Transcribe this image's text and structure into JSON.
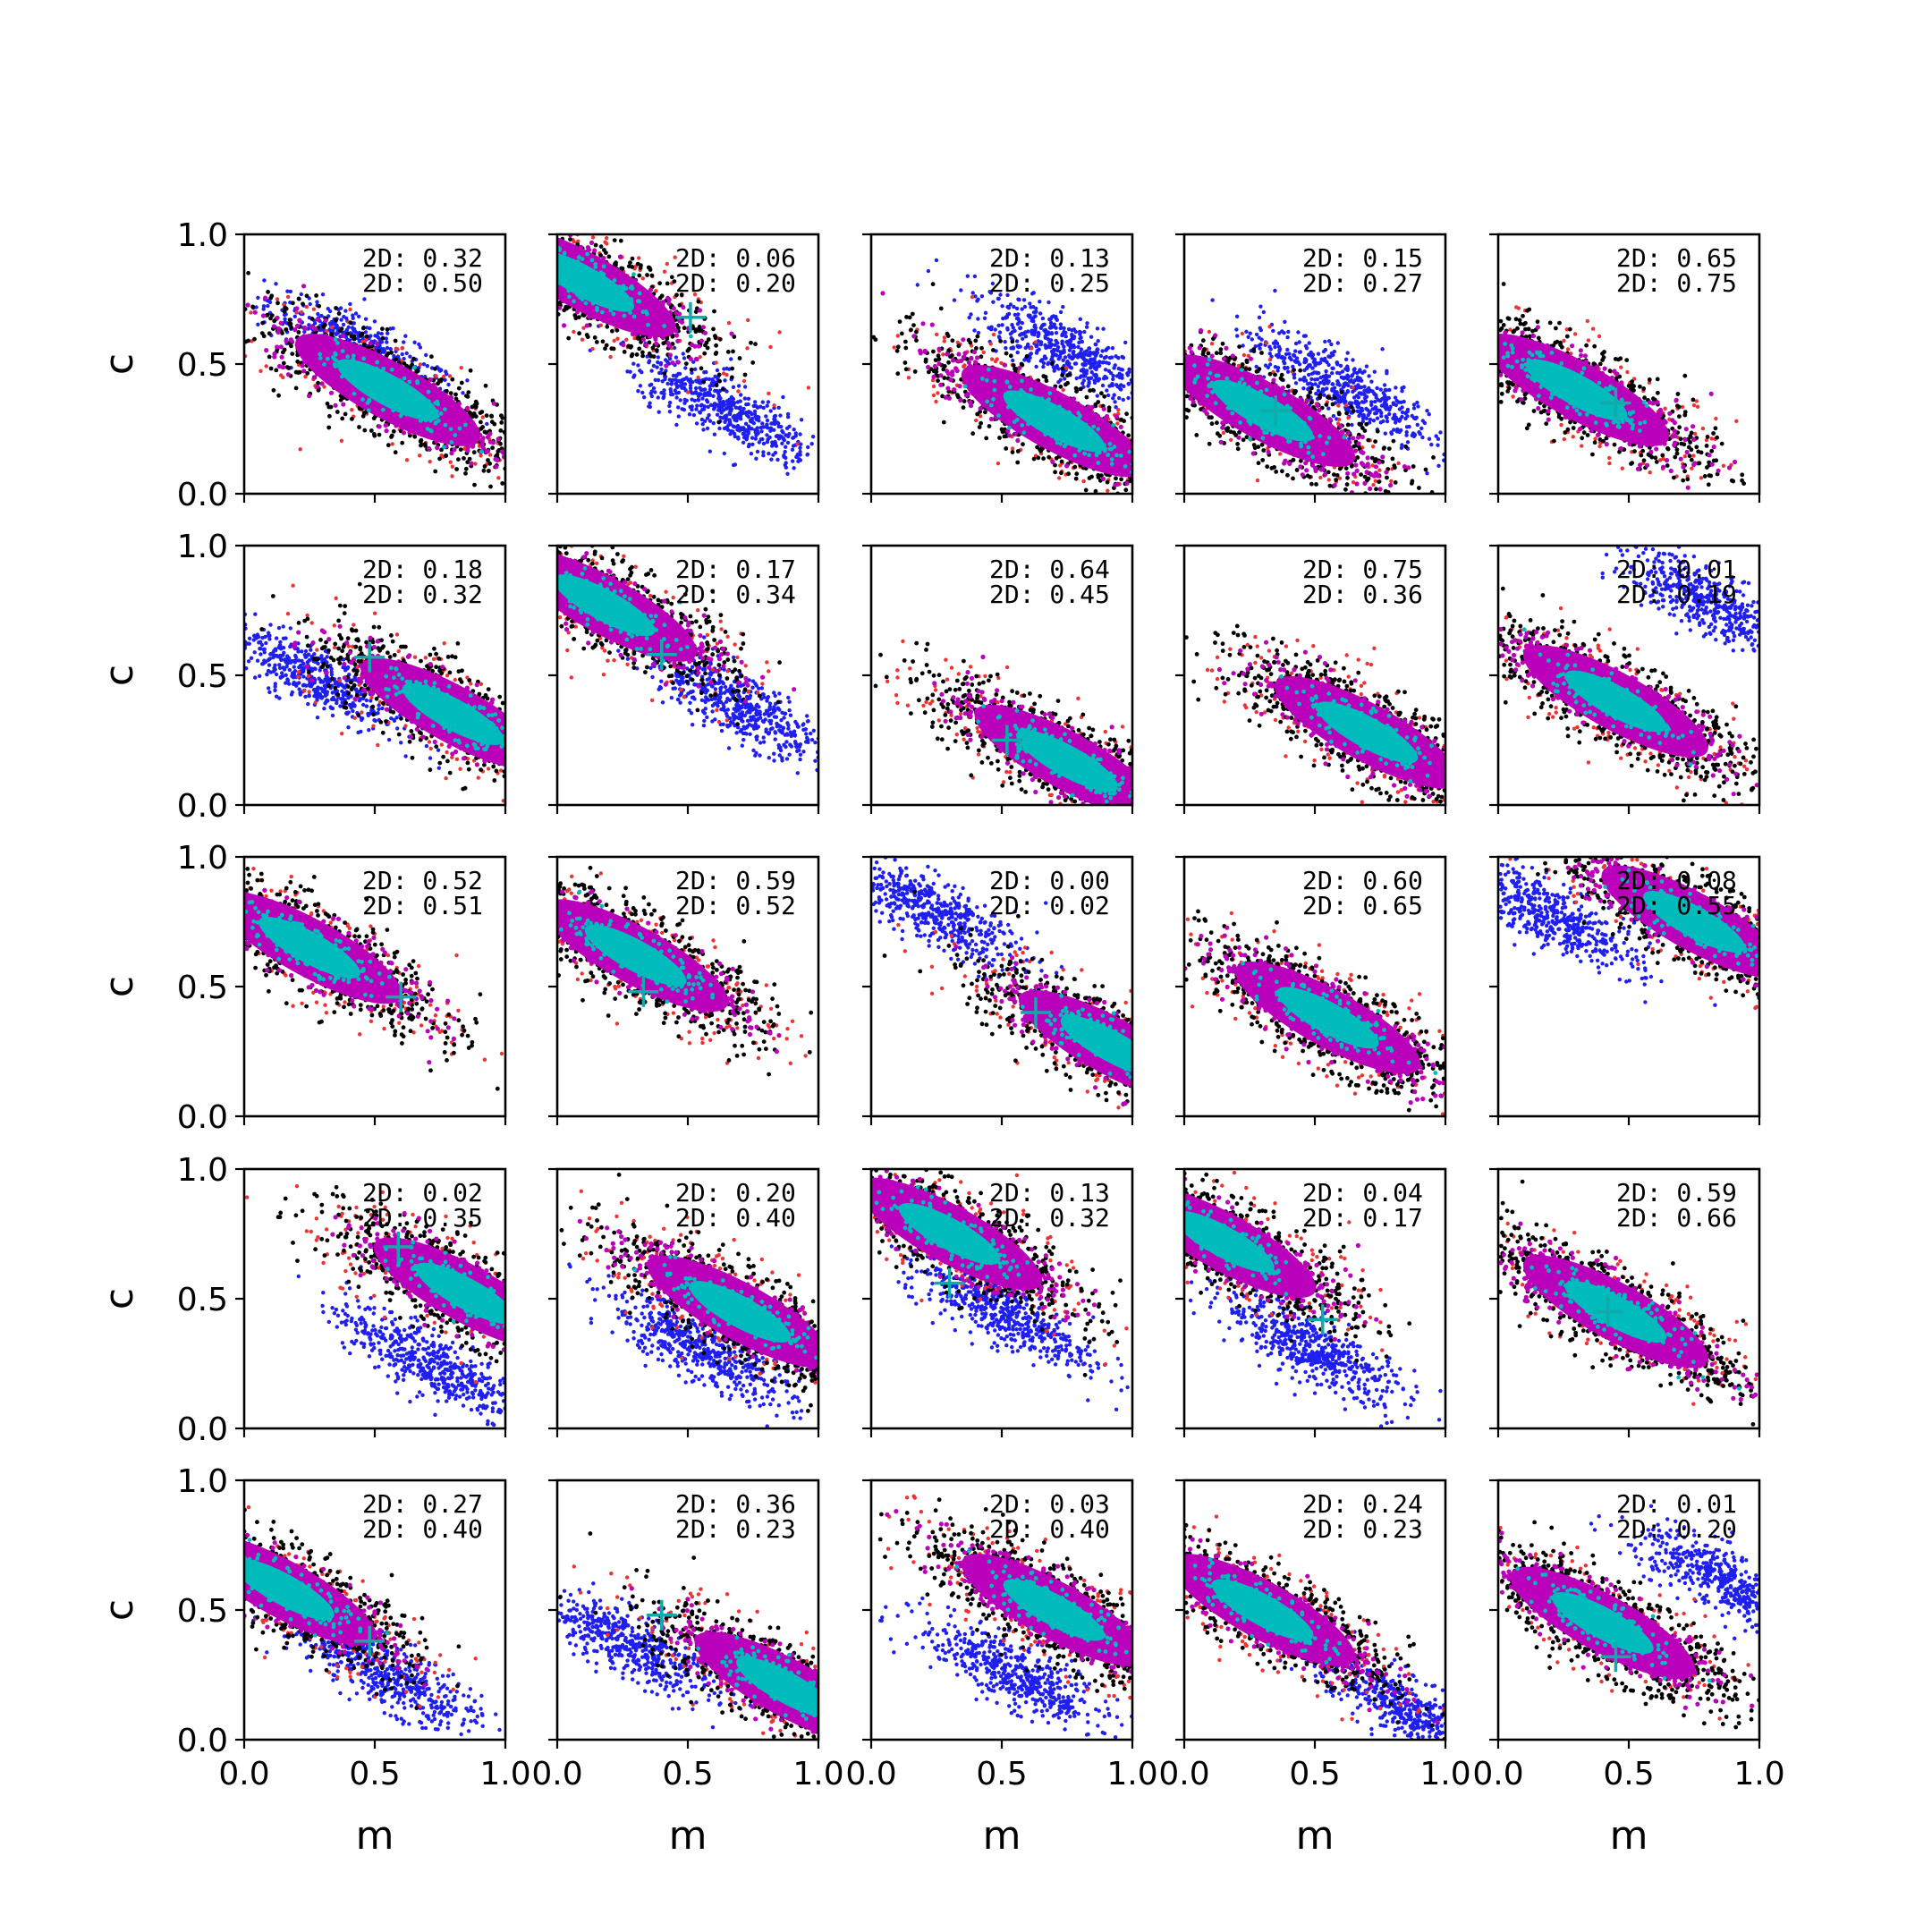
{
  "figure": {
    "type": "scatter",
    "rows": 5,
    "cols": 5,
    "xlim": [
      0,
      1
    ],
    "ylim": [
      0,
      1
    ],
    "xlabel": "m",
    "ylabel": "c",
    "xticks": [
      "0.0",
      "0.5",
      "1.0"
    ],
    "yticks": [
      "0.0",
      "0.5",
      "1.0"
    ],
    "colors": {
      "blue": "#1f1ff0",
      "red": "#ee3333",
      "black": "#000000",
      "magenta": "#bb00bb",
      "cyan": "#00bbbb"
    }
  },
  "chart_data": [
    {
      "type": "scatter",
      "annotations": [
        "2D: 0.32",
        "2D: 0.50"
      ],
      "main_center": [
        0.55,
        0.4
      ],
      "blue_center": [
        0.45,
        0.55
      ],
      "cross": null
    },
    {
      "type": "scatter",
      "annotations": [
        "2D: 0.06",
        "2D: 0.20"
      ],
      "main_center": [
        0.1,
        0.82
      ],
      "blue_center": [
        0.65,
        0.32
      ],
      "cross": [
        0.51,
        0.68
      ]
    },
    {
      "type": "scatter",
      "annotations": [
        "2D: 0.13",
        "2D: 0.25"
      ],
      "main_center": [
        0.7,
        0.28
      ],
      "blue_center": [
        0.75,
        0.55
      ],
      "cross": null
    },
    {
      "type": "scatter",
      "annotations": [
        "2D: 0.15",
        "2D: 0.27"
      ],
      "main_center": [
        0.3,
        0.32
      ],
      "blue_center": [
        0.6,
        0.42
      ],
      "cross": [
        0.35,
        0.32
      ]
    },
    {
      "type": "scatter",
      "annotations": [
        "2D: 0.65",
        "2D: 0.75"
      ],
      "main_center": [
        0.3,
        0.4
      ],
      "blue_center": null,
      "cross": [
        0.45,
        0.35
      ]
    },
    {
      "type": "scatter",
      "annotations": [
        "2D: 0.18",
        "2D: 0.32"
      ],
      "main_center": [
        0.8,
        0.35
      ],
      "blue_center": [
        0.25,
        0.5
      ],
      "cross": [
        0.48,
        0.57
      ]
    },
    {
      "type": "scatter",
      "annotations": [
        "2D: 0.17",
        "2D: 0.34"
      ],
      "main_center": [
        0.18,
        0.77
      ],
      "blue_center": [
        0.7,
        0.38
      ],
      "cross": [
        0.4,
        0.58
      ]
    },
    {
      "type": "scatter",
      "annotations": [
        "2D: 0.64",
        "2D: 0.45"
      ],
      "main_center": [
        0.75,
        0.17
      ],
      "blue_center": null,
      "cross": [
        0.52,
        0.25
      ]
    },
    {
      "type": "scatter",
      "annotations": [
        "2D: 0.75",
        "2D: 0.36"
      ],
      "main_center": [
        0.7,
        0.28
      ],
      "blue_center": null,
      "cross": null
    },
    {
      "type": "scatter",
      "annotations": [
        "2D: 0.01",
        "2D: 0.19"
      ],
      "main_center": [
        0.45,
        0.4
      ],
      "blue_center": [
        0.82,
        0.77
      ],
      "cross": null
    },
    {
      "type": "scatter",
      "annotations": [
        "2D: 0.52",
        "2D: 0.51"
      ],
      "main_center": [
        0.25,
        0.65
      ],
      "blue_center": null,
      "cross": [
        0.6,
        0.46
      ]
    },
    {
      "type": "scatter",
      "annotations": [
        "2D: 0.59",
        "2D: 0.52"
      ],
      "main_center": [
        0.3,
        0.62
      ],
      "blue_center": null,
      "cross": [
        0.33,
        0.48
      ]
    },
    {
      "type": "scatter",
      "annotations": [
        "2D: 0.00",
        "2D: 0.02"
      ],
      "main_center": [
        0.92,
        0.27
      ],
      "blue_center": [
        0.22,
        0.8
      ],
      "cross": [
        0.63,
        0.4
      ]
    },
    {
      "type": "scatter",
      "annotations": [
        "2D: 0.60",
        "2D: 0.65"
      ],
      "main_center": [
        0.55,
        0.38
      ],
      "blue_center": null,
      "cross": null
    },
    {
      "type": "scatter",
      "annotations": [
        "2D: 0.08",
        "2D: 0.55"
      ],
      "main_center": [
        0.75,
        0.75
      ],
      "blue_center": [
        0.2,
        0.77
      ],
      "cross": null
    },
    {
      "type": "scatter",
      "annotations": [
        "2D: 0.02",
        "2D: 0.35"
      ],
      "main_center": [
        0.85,
        0.52
      ],
      "blue_center": [
        0.7,
        0.26
      ],
      "cross": [
        0.59,
        0.7
      ]
    },
    {
      "type": "scatter",
      "annotations": [
        "2D: 0.20",
        "2D: 0.40"
      ],
      "main_center": [
        0.7,
        0.45
      ],
      "blue_center": [
        0.55,
        0.3
      ],
      "cross": null
    },
    {
      "type": "scatter",
      "annotations": [
        "2D: 0.13",
        "2D: 0.32"
      ],
      "main_center": [
        0.3,
        0.75
      ],
      "blue_center": [
        0.5,
        0.45
      ],
      "cross": [
        0.3,
        0.56
      ]
    },
    {
      "type": "scatter",
      "annotations": [
        "2D: 0.04",
        "2D: 0.17"
      ],
      "main_center": [
        0.15,
        0.72
      ],
      "blue_center": [
        0.5,
        0.3
      ],
      "cross": [
        0.53,
        0.42
      ]
    },
    {
      "type": "scatter",
      "annotations": [
        "2D: 0.59",
        "2D: 0.66"
      ],
      "main_center": [
        0.45,
        0.45
      ],
      "blue_center": null,
      "cross": [
        0.42,
        0.45
      ]
    },
    {
      "type": "scatter",
      "annotations": [
        "2D: 0.27",
        "2D: 0.40"
      ],
      "main_center": [
        0.15,
        0.58
      ],
      "blue_center": [
        0.55,
        0.25
      ],
      "cross": [
        0.48,
        0.38
      ]
    },
    {
      "type": "scatter",
      "annotations": [
        "2D: 0.36",
        "2D: 0.23"
      ],
      "main_center": [
        0.88,
        0.2
      ],
      "blue_center": [
        0.25,
        0.38
      ],
      "cross": [
        0.4,
        0.48
      ]
    },
    {
      "type": "scatter",
      "annotations": [
        "2D: 0.03",
        "2D: 0.40"
      ],
      "main_center": [
        0.7,
        0.5
      ],
      "blue_center": [
        0.55,
        0.25
      ],
      "cross": null
    },
    {
      "type": "scatter",
      "annotations": [
        "2D: 0.24",
        "2D: 0.23"
      ],
      "main_center": [
        0.3,
        0.5
      ],
      "blue_center": [
        0.85,
        0.12
      ],
      "cross": null
    },
    {
      "type": "scatter",
      "annotations": [
        "2D: 0.01",
        "2D: 0.20"
      ],
      "main_center": [
        0.4,
        0.45
      ],
      "blue_center": [
        0.88,
        0.6
      ],
      "cross": [
        0.45,
        0.32
      ]
    }
  ]
}
